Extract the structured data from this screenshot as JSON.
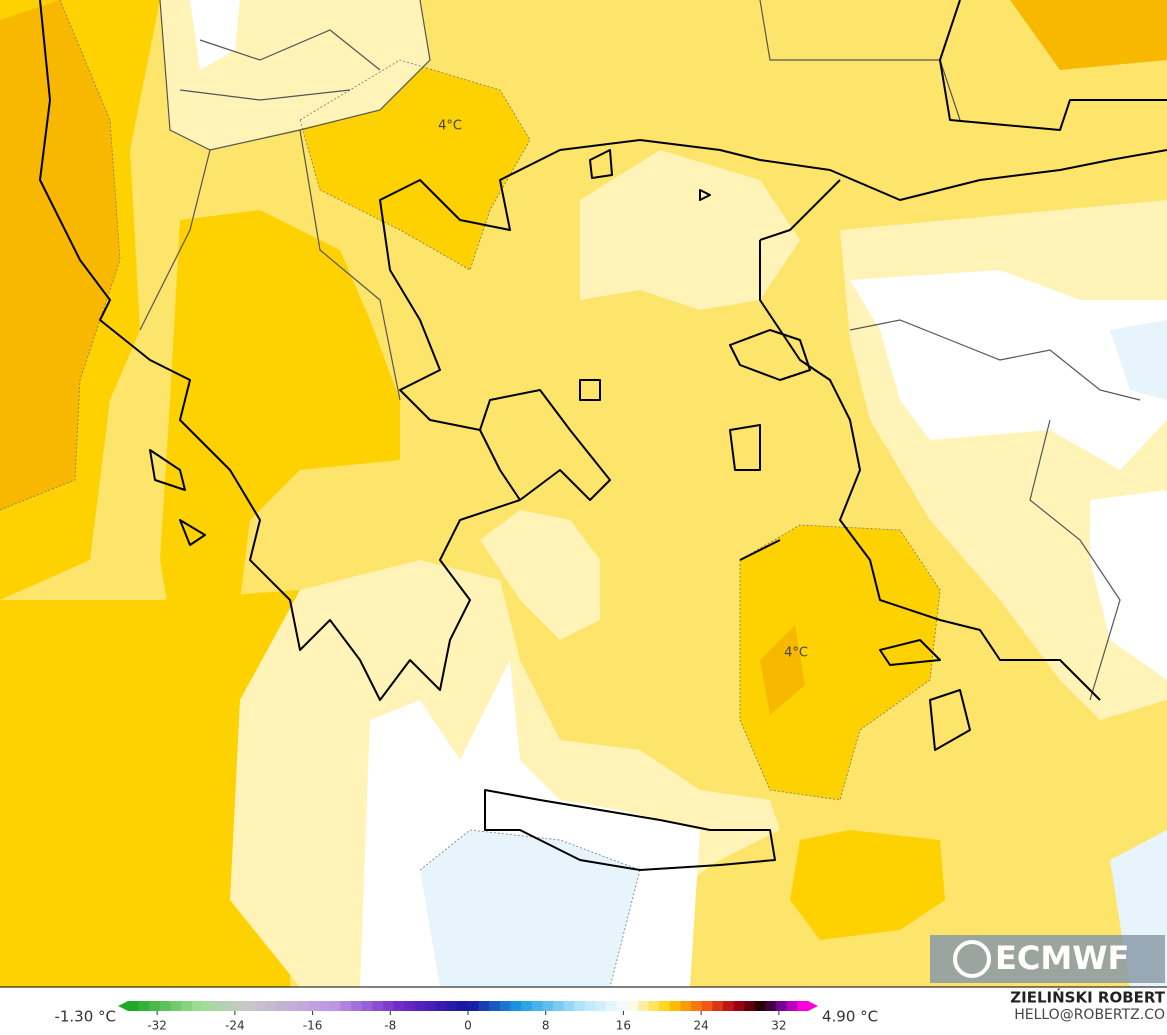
{
  "map": {
    "contour_labels": [
      "4°C",
      "4°C"
    ],
    "min_label": "-1.30 °C",
    "max_label": "4.90 °C",
    "colorbar": {
      "range": [
        -35,
        35
      ],
      "ticks": [
        -32,
        -24,
        -16,
        -8,
        0,
        8,
        16,
        24,
        32
      ]
    },
    "logo": "ECMWF",
    "author": "ZIELIŃSKI ROBERT",
    "contact": "HELLO@ROBERTZ.CO"
  }
}
